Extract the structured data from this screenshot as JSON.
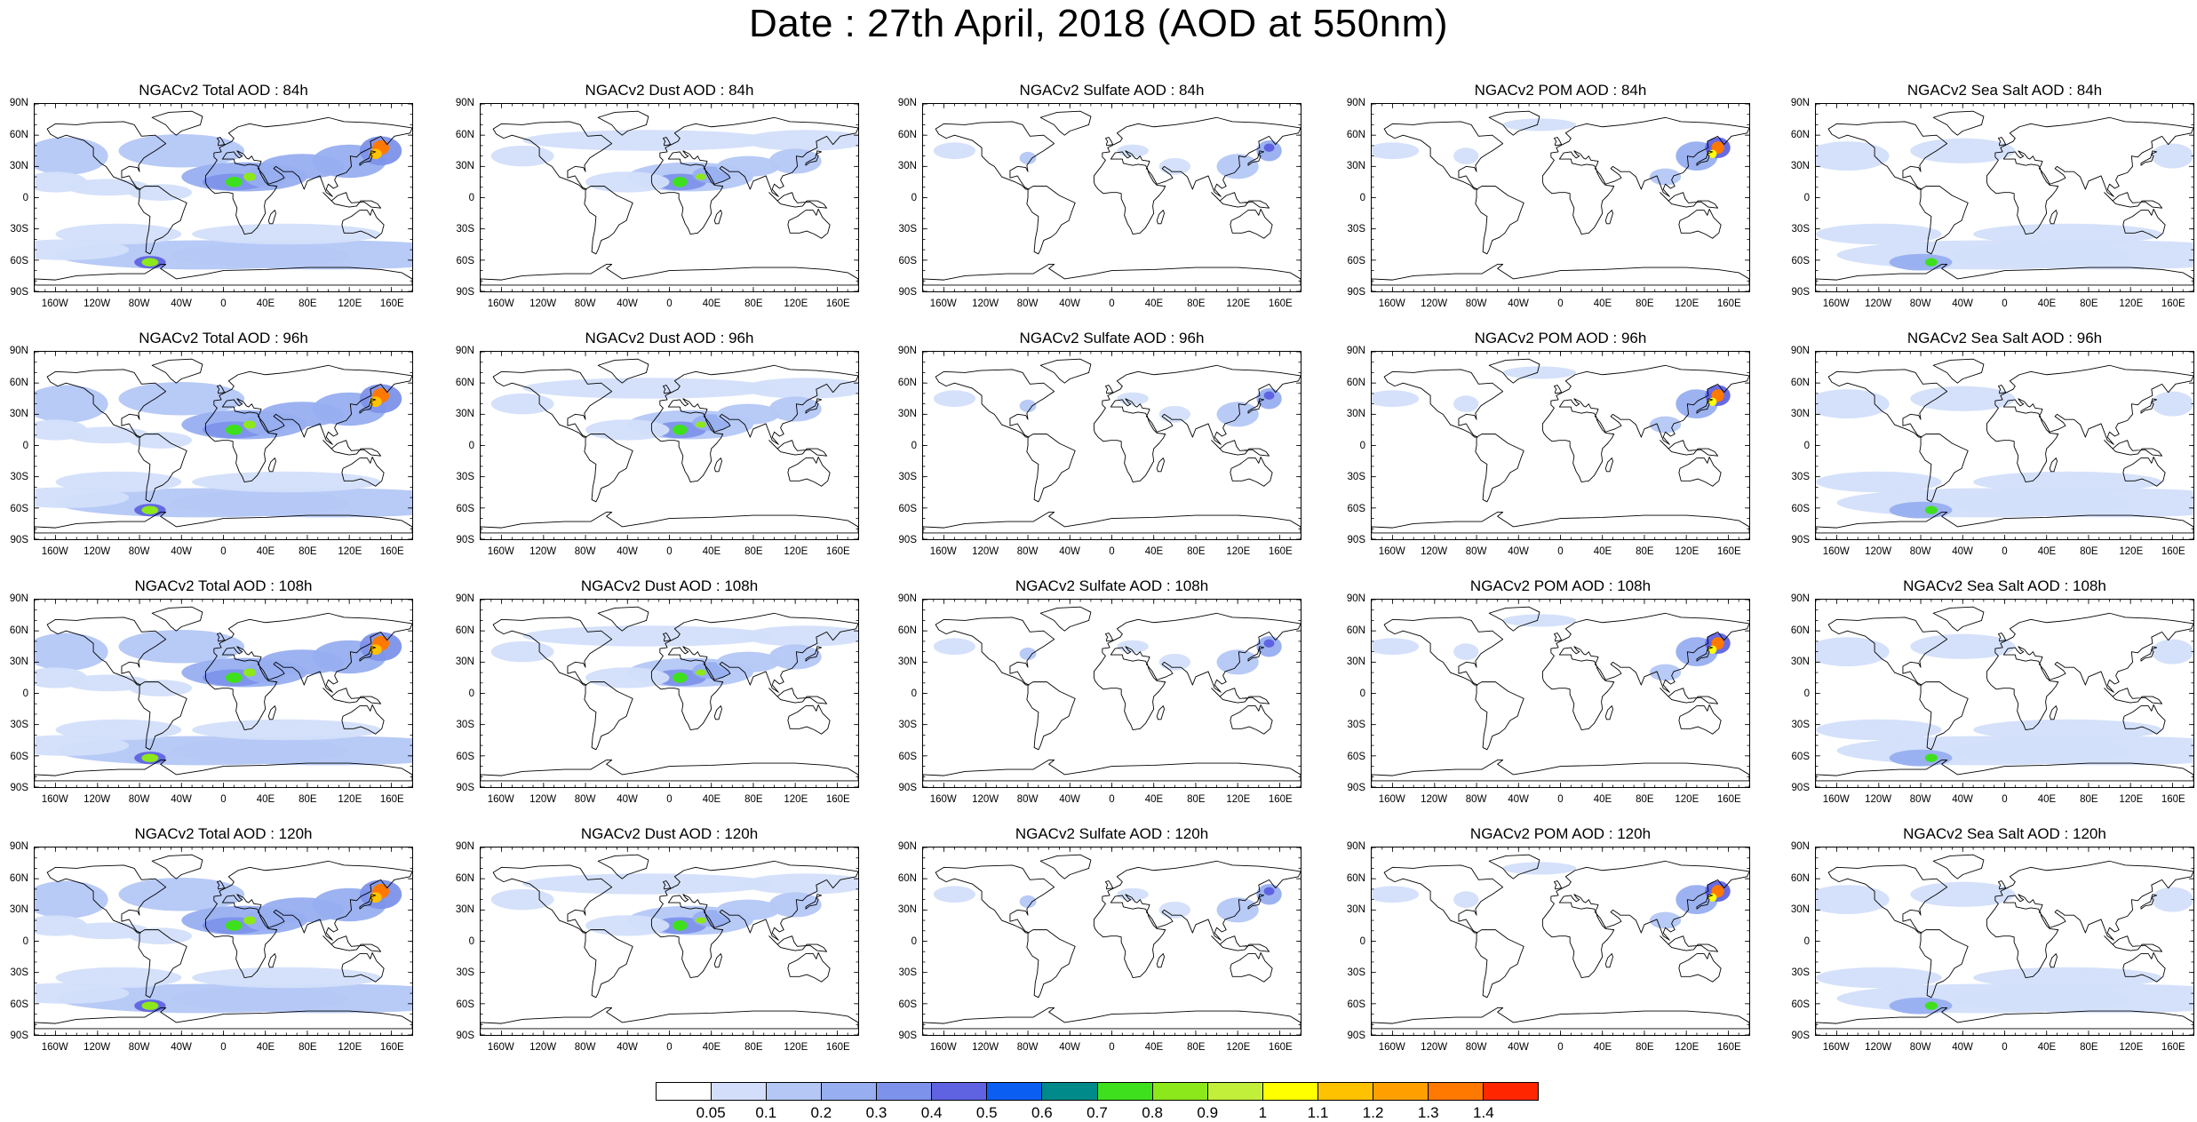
{
  "title": "Date : 27th April, 2018 (AOD at 550nm)",
  "lat_labels": [
    "90N",
    "60N",
    "30N",
    "0",
    "30S",
    "60S",
    "90S"
  ],
  "lon_labels": [
    "160W",
    "120W",
    "80W",
    "40W",
    "0",
    "40E",
    "80E",
    "120E",
    "160E"
  ],
  "lon_values": [
    -160,
    -120,
    -80,
    -40,
    0,
    40,
    80,
    120,
    160
  ],
  "lat_values": [
    90,
    60,
    30,
    0,
    -30,
    -60,
    -90
  ],
  "panels": [
    {
      "title": "NGACv2 Total AOD : 84h",
      "species": "total",
      "hour": 84
    },
    {
      "title": "NGACv2 Dust AOD : 84h",
      "species": "dust",
      "hour": 84
    },
    {
      "title": "NGACv2 Sulfate AOD : 84h",
      "species": "sulfate",
      "hour": 84
    },
    {
      "title": "NGACv2 POM AOD : 84h",
      "species": "pom",
      "hour": 84
    },
    {
      "title": "NGACv2 Sea Salt AOD : 84h",
      "species": "seasalt",
      "hour": 84
    },
    {
      "title": "NGACv2 Total AOD : 96h",
      "species": "total",
      "hour": 96
    },
    {
      "title": "NGACv2 Dust AOD : 96h",
      "species": "dust",
      "hour": 96
    },
    {
      "title": "NGACv2 Sulfate AOD : 96h",
      "species": "sulfate",
      "hour": 96
    },
    {
      "title": "NGACv2 POM AOD : 96h",
      "species": "pom",
      "hour": 96
    },
    {
      "title": "NGACv2 Sea Salt AOD : 96h",
      "species": "seasalt",
      "hour": 96
    },
    {
      "title": "NGACv2 Total AOD : 108h",
      "species": "total",
      "hour": 108
    },
    {
      "title": "NGACv2 Dust AOD : 108h",
      "species": "dust",
      "hour": 108
    },
    {
      "title": "NGACv2 Sulfate AOD : 108h",
      "species": "sulfate",
      "hour": 108
    },
    {
      "title": "NGACv2 POM AOD : 108h",
      "species": "pom",
      "hour": 108
    },
    {
      "title": "NGACv2 Sea Salt AOD : 108h",
      "species": "seasalt",
      "hour": 108
    },
    {
      "title": "NGACv2 Total AOD : 120h",
      "species": "total",
      "hour": 120
    },
    {
      "title": "NGACv2 Dust AOD : 120h",
      "species": "dust",
      "hour": 120
    },
    {
      "title": "NGACv2 Sulfate AOD : 120h",
      "species": "sulfate",
      "hour": 120
    },
    {
      "title": "NGACv2 POM AOD : 120h",
      "species": "pom",
      "hour": 120
    },
    {
      "title": "NGACv2 Sea Salt  AOD : 120h",
      "species": "seasalt",
      "hour": 120
    }
  ],
  "colorbar": {
    "labels": [
      "0.05",
      "0.1",
      "0.2",
      "0.3",
      "0.4",
      "0.5",
      "0.6",
      "0.7",
      "0.8",
      "0.9",
      "1",
      "1.1",
      "1.2",
      "1.3",
      "1.4"
    ],
    "colors": [
      "#ffffff",
      "#d3dffa",
      "#b4c7f5",
      "#97aef0",
      "#7d92ea",
      "#5f63e2",
      "#0a5ff2",
      "#008a8a",
      "#3ee01e",
      "#8ce81a",
      "#c2ef3a",
      "#ffff00",
      "#ffc200",
      "#ffa000",
      "#ff7800",
      "#ff2600"
    ]
  }
}
